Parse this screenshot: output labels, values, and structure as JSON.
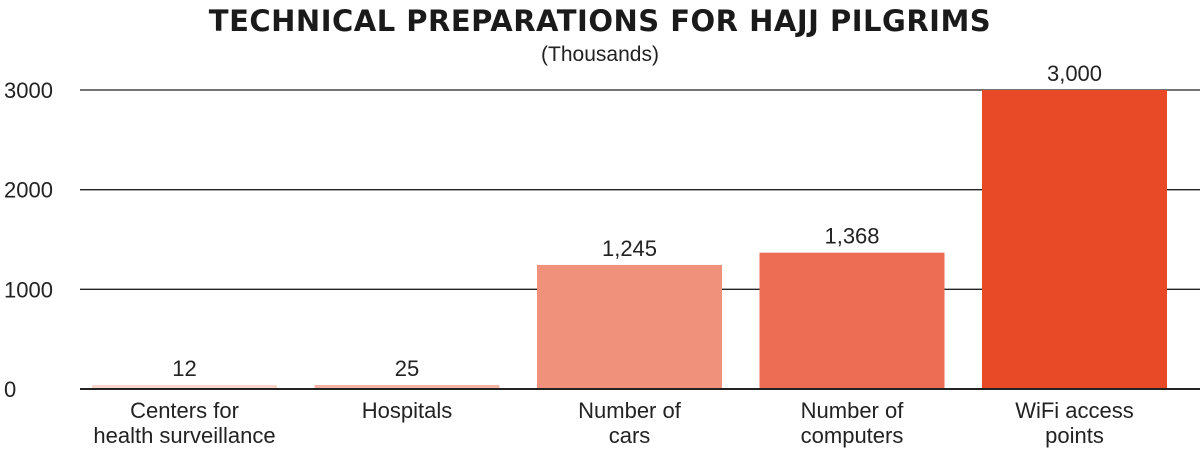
{
  "chart_data": {
    "type": "bar",
    "title": "TECHNICAL PREPARATIONS FOR HAJJ PILGRIMS",
    "subtitle": "(Thousands)",
    "categories": [
      [
        "Centers for",
        "health surveillance"
      ],
      [
        "Hospitals"
      ],
      [
        "Number of",
        "cars"
      ],
      [
        "Number of",
        "computers"
      ],
      [
        "WiFi access",
        "points"
      ]
    ],
    "values": [
      12,
      25,
      1245,
      1368,
      3000
    ],
    "data_labels": [
      "12",
      "25",
      "1,245",
      "1,368",
      "3,000"
    ],
    "colors": [
      "#f9d6cc",
      "#f4b3a3",
      "#f0917b",
      "#ec6d54",
      "#e84a28"
    ],
    "yticks": [
      0,
      1000,
      2000,
      3000
    ],
    "ylim": [
      0,
      3000
    ],
    "grid": true,
    "xlabel": "",
    "ylabel": ""
  }
}
